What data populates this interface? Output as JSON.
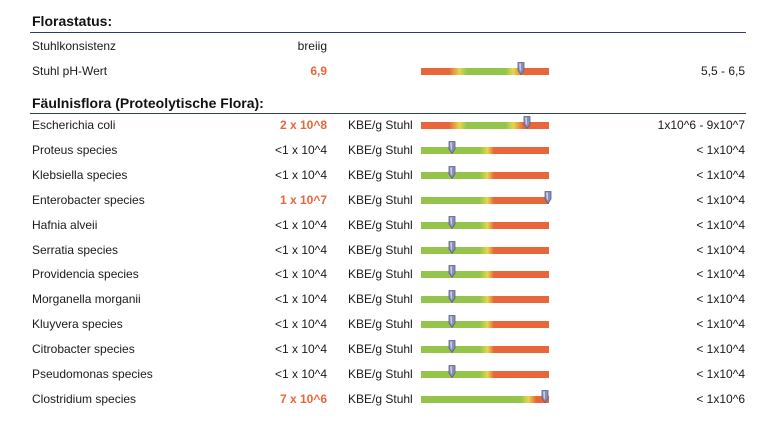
{
  "sections": {
    "flora": {
      "title": "Florastatus:",
      "rows": [
        {
          "name": "Stuhlkonsistenz",
          "value": "breiig",
          "high": false,
          "unit": "",
          "ref": "",
          "bar": null
        },
        {
          "name": "Stuhl pH-Wert",
          "value": "6,9",
          "high": true,
          "unit": "",
          "ref": "5,5 - 6,5",
          "bar": {
            "type": "range",
            "marker": 0.78
          }
        }
      ]
    },
    "faeulnis": {
      "title": "Fäulnisflora (Proteolytische Flora):",
      "rows": [
        {
          "name": "Escherichia coli",
          "value": "2 x 10^8",
          "high": true,
          "unit": "KBE/g Stuhl",
          "ref": "1x10^6 - 9x10^7",
          "bar": {
            "type": "range",
            "marker": 0.83
          }
        },
        {
          "name": "Proteus species",
          "value": "<1 x 10^4",
          "high": false,
          "unit": "KBE/g Stuhl",
          "ref": "< 1x10^4",
          "bar": {
            "type": "low",
            "marker": 0.24
          }
        },
        {
          "name": "Klebsiella species",
          "value": "<1 x 10^4",
          "high": false,
          "unit": "KBE/g Stuhl",
          "ref": "< 1x10^4",
          "bar": {
            "type": "low",
            "marker": 0.24
          }
        },
        {
          "name": "Enterobacter species",
          "value": "1 x 10^7",
          "high": true,
          "unit": "KBE/g Stuhl",
          "ref": "< 1x10^4",
          "bar": {
            "type": "low",
            "marker": 0.99
          }
        },
        {
          "name": "Hafnia alveii",
          "value": "<1 x 10^4",
          "high": false,
          "unit": "KBE/g Stuhl",
          "ref": "< 1x10^4",
          "bar": {
            "type": "low",
            "marker": 0.24
          }
        },
        {
          "name": "Serratia species",
          "value": "<1 x 10^4",
          "high": false,
          "unit": "KBE/g Stuhl",
          "ref": "< 1x10^4",
          "bar": {
            "type": "low",
            "marker": 0.24
          }
        },
        {
          "name": "Providencia species",
          "value": "<1 x 10^4",
          "high": false,
          "unit": "KBE/g Stuhl",
          "ref": "< 1x10^4",
          "bar": {
            "type": "low",
            "marker": 0.24
          }
        },
        {
          "name": "Morganella morganii",
          "value": "<1 x 10^4",
          "high": false,
          "unit": "KBE/g Stuhl",
          "ref": "< 1x10^4",
          "bar": {
            "type": "low",
            "marker": 0.24
          }
        },
        {
          "name": "Kluyvera species",
          "value": "<1 x 10^4",
          "high": false,
          "unit": "KBE/g Stuhl",
          "ref": "< 1x10^4",
          "bar": {
            "type": "low",
            "marker": 0.24
          }
        },
        {
          "name": "Citrobacter species",
          "value": "<1 x 10^4",
          "high": false,
          "unit": "KBE/g Stuhl",
          "ref": "< 1x10^4",
          "bar": {
            "type": "low",
            "marker": 0.24
          }
        },
        {
          "name": "Pseudomonas species",
          "value": "<1 x 10^4",
          "high": false,
          "unit": "KBE/g Stuhl",
          "ref": "< 1x10^4",
          "bar": {
            "type": "low",
            "marker": 0.24
          }
        },
        {
          "name": "Clostridium species",
          "value": "7 x 10^6",
          "high": true,
          "unit": "KBE/g Stuhl",
          "ref": "< 1x10^6",
          "bar": {
            "type": "wide",
            "marker": 0.97
          }
        }
      ]
    }
  },
  "colors": {
    "high_value": "#e8663a",
    "bar_red": "#e8663a",
    "bar_green": "#94c44a",
    "bar_yellow": "#e3d84c",
    "rule": "#2d3f62",
    "marker": "#8a8fb8"
  }
}
